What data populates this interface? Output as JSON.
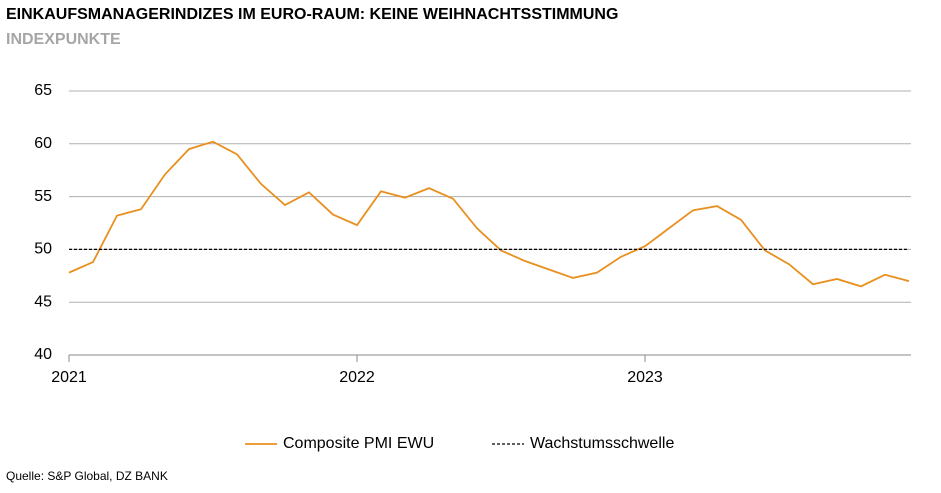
{
  "chart_data": {
    "type": "line",
    "title": "EINKAUFSMANAGERINDIZES IM EURO-RAUM: KEINE WEIHNACHTSSTIMMUNG",
    "subtitle": "INDEXPUNKTE",
    "source": "Quelle: S&P Global, DZ BANK",
    "categories": [
      "2021",
      null,
      null,
      null,
      null,
      null,
      null,
      null,
      null,
      null,
      null,
      null,
      "2022",
      null,
      null,
      null,
      null,
      null,
      null,
      null,
      null,
      null,
      null,
      null,
      "2023",
      null,
      null,
      null,
      null,
      null,
      null,
      null,
      null,
      null,
      null,
      null
    ],
    "series": [
      {
        "name": "Composite PMI EWU",
        "color": "#e8901f",
        "dashed": false,
        "values": [
          47.8,
          48.8,
          53.2,
          53.8,
          57.1,
          59.5,
          60.2,
          59.0,
          56.2,
          54.2,
          55.4,
          53.3,
          52.3,
          55.5,
          54.9,
          55.8,
          54.8,
          52.0,
          49.9,
          48.9,
          48.1,
          47.3,
          47.8,
          49.3,
          50.3,
          52.0,
          53.7,
          54.1,
          52.8,
          49.9,
          48.6,
          46.7,
          47.2,
          46.5,
          47.6,
          47.0
        ]
      },
      {
        "name": "Wachstumsschwelle",
        "color": "#000000",
        "dashed": true,
        "values": [
          50,
          50,
          50,
          50,
          50,
          50,
          50,
          50,
          50,
          50,
          50,
          50,
          50,
          50,
          50,
          50,
          50,
          50,
          50,
          50,
          50,
          50,
          50,
          50,
          50,
          50,
          50,
          50,
          50,
          50,
          50,
          50,
          50,
          50,
          50,
          50
        ]
      }
    ],
    "ylim": [
      40,
      65
    ],
    "yticks": [
      40,
      45,
      50,
      55,
      60,
      65
    ],
    "grid": true,
    "legend": "bottom"
  }
}
